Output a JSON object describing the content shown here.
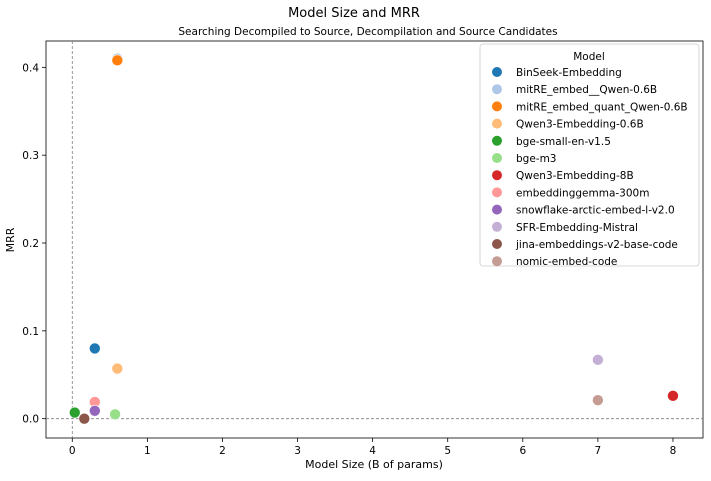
{
  "chart_data": {
    "type": "scatter",
    "title": "Model Size and MRR",
    "subtitle": "Searching Decompiled to Source, Decompilation and Source Candidates",
    "xlabel": "Model Size (B of params)",
    "ylabel": "MRR",
    "xlim": [
      -0.35,
      8.4
    ],
    "ylim": [
      -0.022,
      0.43
    ],
    "xticks": [
      0,
      1,
      2,
      3,
      4,
      5,
      6,
      7,
      8
    ],
    "yticks": [
      0.0,
      0.1,
      0.2,
      0.3,
      0.4
    ],
    "ytick_labels": [
      "0.0",
      "0.1",
      "0.2",
      "0.3",
      "0.4"
    ],
    "grid": false,
    "reference_lines": {
      "x": 0,
      "y": 0,
      "style": "dashed"
    },
    "legend": {
      "title": "Model",
      "position": "top-right"
    },
    "series": [
      {
        "name": "BinSeek-Embedding",
        "color": "#1f77b4",
        "points": [
          {
            "x": 0.3,
            "y": 0.08
          }
        ]
      },
      {
        "name": "mitRE_embed__Qwen-0.6B",
        "color": "#aec7e8",
        "points": [
          {
            "x": 0.6,
            "y": 0.41
          }
        ]
      },
      {
        "name": "mitRE_embed_quant_Qwen-0.6B",
        "color": "#ff7f0e",
        "points": [
          {
            "x": 0.6,
            "y": 0.408
          }
        ]
      },
      {
        "name": "Qwen3-Embedding-0.6B",
        "color": "#ffbb78",
        "points": [
          {
            "x": 0.6,
            "y": 0.057
          }
        ]
      },
      {
        "name": "bge-small-en-v1.5",
        "color": "#2ca02c",
        "points": [
          {
            "x": 0.033,
            "y": 0.007
          }
        ]
      },
      {
        "name": "bge-m3",
        "color": "#98df8a",
        "points": [
          {
            "x": 0.57,
            "y": 0.005
          }
        ]
      },
      {
        "name": "Qwen3-Embedding-8B",
        "color": "#d62728",
        "points": [
          {
            "x": 8.0,
            "y": 0.026
          }
        ]
      },
      {
        "name": "embeddinggemma-300m",
        "color": "#ff9896",
        "points": [
          {
            "x": 0.3,
            "y": 0.019
          }
        ]
      },
      {
        "name": "snowflake-arctic-embed-l-v2.0",
        "color": "#9467bd",
        "points": [
          {
            "x": 0.3,
            "y": 0.009
          }
        ]
      },
      {
        "name": "SFR-Embedding-Mistral",
        "color": "#c5b0d5",
        "points": [
          {
            "x": 7.0,
            "y": 0.067
          }
        ]
      },
      {
        "name": "jina-embeddings-v2-base-code",
        "color": "#8c564b",
        "points": [
          {
            "x": 0.16,
            "y": 0.0
          }
        ]
      },
      {
        "name": "nomic-embed-code",
        "color": "#c49c94",
        "points": [
          {
            "x": 7.0,
            "y": 0.021
          }
        ]
      }
    ]
  }
}
